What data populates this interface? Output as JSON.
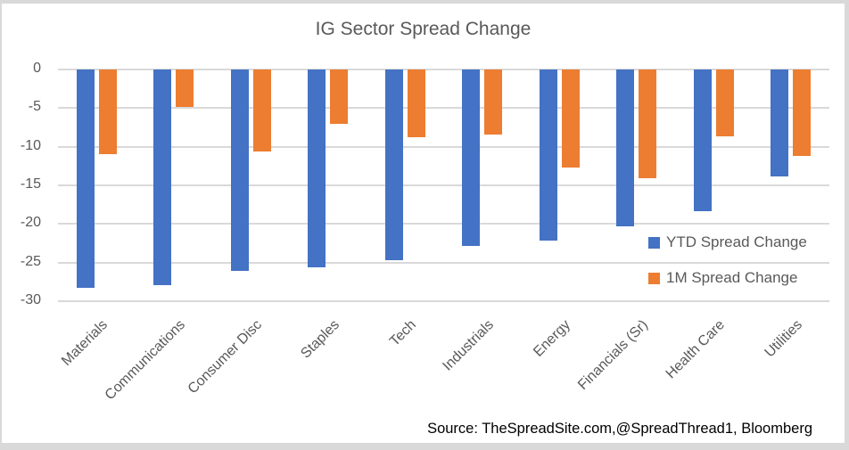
{
  "chart_data": {
    "type": "bar",
    "title": "IG Sector Spread Change",
    "categories": [
      "Materials",
      "Communications",
      "Consumer Disc",
      "Staples",
      "Tech",
      "Industrials",
      "Energy",
      "Financials (Sr)",
      "Health Care",
      "Utilities"
    ],
    "series": [
      {
        "name": "YTD Spread Change",
        "color": "#4472C4",
        "values": [
          -28.3,
          -27.9,
          -26.1,
          -25.6,
          -24.7,
          -22.9,
          -22.2,
          -20.3,
          -18.3,
          -13.8
        ]
      },
      {
        "name": "1M Spread Change",
        "color": "#ED7D31",
        "values": [
          -11.0,
          -4.9,
          -10.6,
          -7.0,
          -8.8,
          -8.4,
          -12.7,
          -14.1,
          -8.7,
          -11.2
        ]
      }
    ],
    "xlabel": "",
    "ylabel": "",
    "ylim": [
      -30,
      0
    ],
    "yticks": [
      0,
      -5,
      -10,
      -15,
      -20,
      -25,
      -30
    ],
    "grid": true,
    "legend_position": "inside-right",
    "gridline_color": "#D9D9D9",
    "text_color": "#595959"
  },
  "source_note": "Source: TheSpreadSite.com,@SpreadThread1, Bloomberg"
}
